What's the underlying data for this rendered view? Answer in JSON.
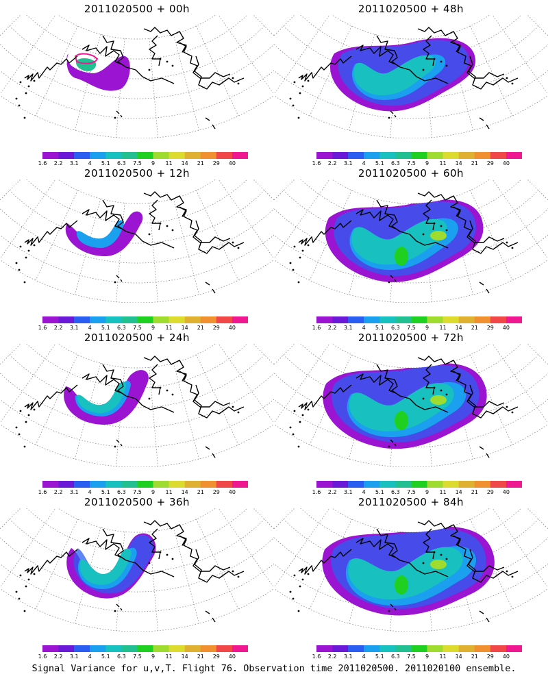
{
  "footer": "Signal Variance for u,v,T. Flight 76. Observation time 2011020500. 2011020100 ensemble.",
  "colorbar": {
    "tick_labels": [
      "1.6",
      "2.2",
      "3.1",
      "4",
      "5.1",
      "6.3",
      "7.5",
      "9",
      "11",
      "14",
      "21",
      "29",
      "40"
    ],
    "colors": [
      "#9a14d2",
      "#6a1ad6",
      "#2a5ef0",
      "#1aa0ee",
      "#18c0c0",
      "#22c090",
      "#20d020",
      "#a0dc30",
      "#dcdc30",
      "#e0b030",
      "#f09030",
      "#f04848",
      "#f01890"
    ]
  },
  "chart_data": [
    {
      "type": "heatmap",
      "title": "2011020500 + 00h",
      "lead_hours": 0,
      "max_level": "6.3"
    },
    {
      "type": "heatmap",
      "title": "2011020500 + 48h",
      "lead_hours": 48,
      "max_level": "9"
    },
    {
      "type": "heatmap",
      "title": "2011020500 + 12h",
      "lead_hours": 12,
      "max_level": "5.1"
    },
    {
      "type": "heatmap",
      "title": "2011020500 + 60h",
      "lead_hours": 60,
      "max_level": "9"
    },
    {
      "type": "heatmap",
      "title": "2011020500 + 24h",
      "lead_hours": 24,
      "max_level": "5.1"
    },
    {
      "type": "heatmap",
      "title": "2011020500 + 72h",
      "lead_hours": 72,
      "max_level": "11"
    },
    {
      "type": "heatmap",
      "title": "2011020500 + 36h",
      "lead_hours": 36,
      "max_level": "5.1"
    },
    {
      "type": "heatmap",
      "title": "2011020500 + 84h",
      "lead_hours": 84,
      "max_level": "11"
    }
  ]
}
